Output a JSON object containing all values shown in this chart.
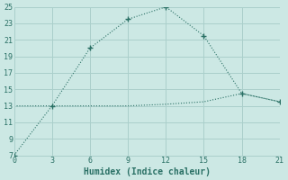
{
  "line1_x": [
    0,
    3,
    6,
    9,
    12,
    15,
    18,
    21
  ],
  "line1_y": [
    7,
    13,
    20,
    23.5,
    25,
    21.5,
    14.5,
    13.5
  ],
  "line2_x": [
    0,
    3,
    6,
    9,
    12,
    15,
    18,
    21
  ],
  "line2_y": [
    13,
    13,
    13,
    13,
    13.2,
    13.5,
    14.5,
    13.5
  ],
  "line_color": "#2a7065",
  "bg_color": "#cce8e4",
  "grid_color": "#aacfcb",
  "xlabel": "Humidex (Indice chaleur)",
  "xlim": [
    0,
    21
  ],
  "ylim": [
    7,
    25
  ],
  "xticks": [
    0,
    3,
    6,
    9,
    12,
    15,
    18,
    21
  ],
  "yticks": [
    7,
    9,
    11,
    13,
    15,
    17,
    19,
    21,
    23,
    25
  ],
  "tick_fontsize": 6,
  "xlabel_fontsize": 7
}
